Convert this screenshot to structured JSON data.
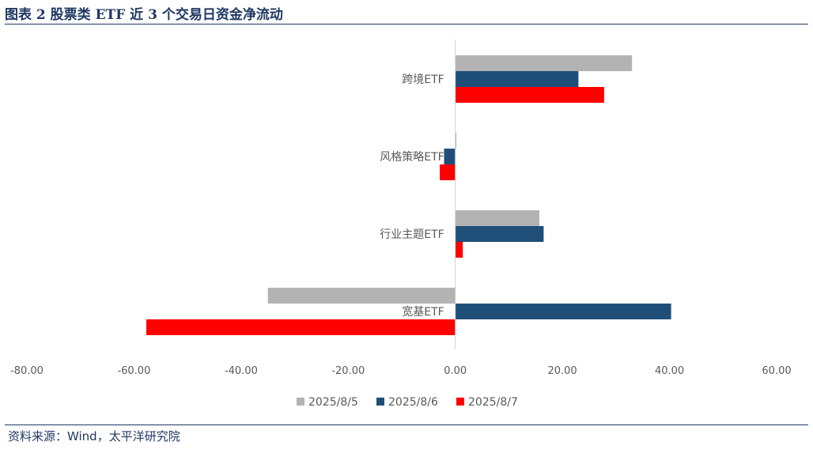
{
  "header": {
    "title": "图表 2  股票类 ETF 近 3 个交易日资金净流动"
  },
  "footer": {
    "source": "资料来源：Wind，太平洋研究院"
  },
  "chart_data": {
    "type": "bar",
    "orientation": "horizontal",
    "categories": [
      "跨境ETF",
      "风格策略ETF",
      "行业主题ETF",
      "宽基ETF"
    ],
    "series": [
      {
        "name": "2025/8/5",
        "color": "#b3b3b3",
        "values": [
          33.0,
          0.2,
          15.7,
          -35.0
        ]
      },
      {
        "name": "2025/8/6",
        "color": "#1f4e79",
        "values": [
          23.0,
          -2.1,
          16.5,
          40.3
        ]
      },
      {
        "name": "2025/8/7",
        "color": "#ff0000",
        "values": [
          27.8,
          -2.9,
          1.4,
          -57.7
        ]
      }
    ],
    "xlim": [
      -80,
      60
    ],
    "xticks": [
      "-80.00",
      "-60.00",
      "-40.00",
      "-20.00",
      "0.00",
      "20.00",
      "40.00",
      "60.00"
    ],
    "xtick_values": [
      -80,
      -60,
      -40,
      -20,
      0,
      20,
      40,
      60
    ],
    "legend": "bottom",
    "grid": false
  }
}
